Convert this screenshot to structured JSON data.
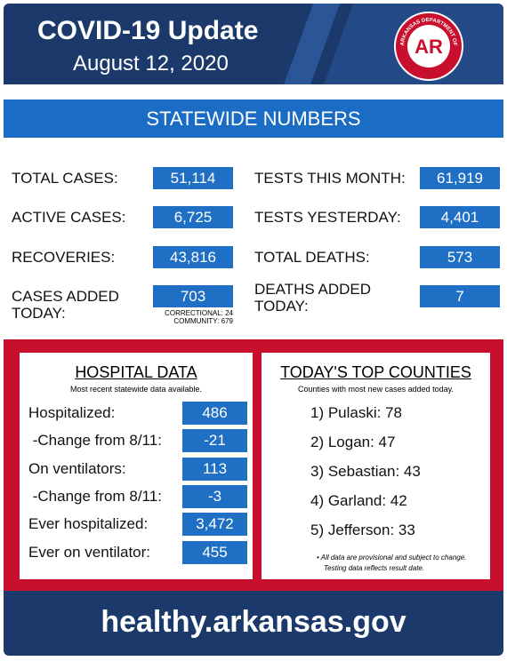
{
  "header": {
    "title": "COVID-19 Update",
    "date": "August 12, 2020"
  },
  "logo": {
    "arc_top": "ARKANSAS DEPARTMENT OF",
    "arc_bottom": "HEALTH",
    "mark": "AR"
  },
  "statewide": {
    "title": "STATEWIDE NUMBERS",
    "left": [
      {
        "label": "TOTAL CASES:",
        "value": "51,114"
      },
      {
        "label": "ACTIVE CASES:",
        "value": "6,725"
      },
      {
        "label": "RECOVERIES:",
        "value": "43,816"
      },
      {
        "label": "CASES ADDED TODAY:",
        "value": "703",
        "notes": [
          "CORRECTIONAL: 24",
          "COMMUNITY: 679"
        ]
      }
    ],
    "right": [
      {
        "label": "TESTS THIS MONTH:",
        "value": "61,919"
      },
      {
        "label": "TESTS YESTERDAY:",
        "value": "4,401"
      },
      {
        "label": "TOTAL DEATHS:",
        "value": "573"
      },
      {
        "label": "DEATHS ADDED TODAY:",
        "value": "7"
      }
    ]
  },
  "hospital": {
    "title": "HOSPITAL DATA",
    "subtitle": "Most recent statewide data available.",
    "rows": [
      {
        "label": "Hospitalized:",
        "value": "486"
      },
      {
        "label": " -Change from 8/11:",
        "value": "-21"
      },
      {
        "label": "On ventilators:",
        "value": "113"
      },
      {
        "label": " -Change from 8/11:",
        "value": "-3"
      },
      {
        "label": "Ever hospitalized:",
        "value": "3,472"
      },
      {
        "label": "Ever on ventilator:",
        "value": "455"
      }
    ]
  },
  "counties": {
    "title": "TODAY'S TOP COUNTIES",
    "subtitle": "Counties with most new cases added today.",
    "items": [
      "1) Pulaski: 78",
      "2) Logan: 47",
      "3) Sebastian: 43",
      "4) Garland: 42",
      "5) Jefferson: 33"
    ],
    "notes": [
      "• All data are provisional and subject to change.",
      "Testing data reflects result date."
    ]
  },
  "footer": {
    "url": "healthy.arkansas.gov"
  }
}
